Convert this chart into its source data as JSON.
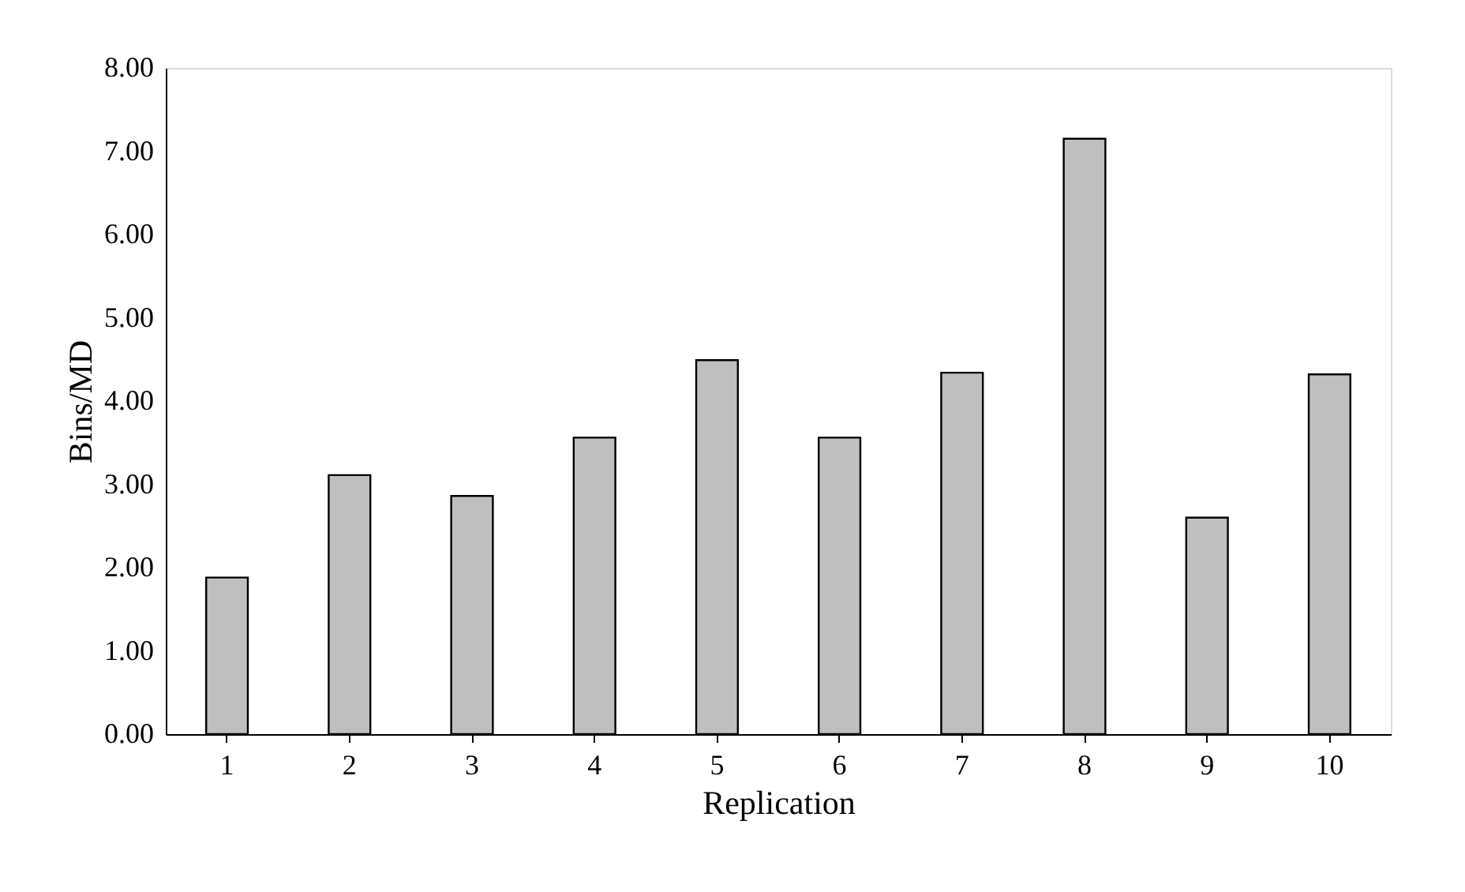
{
  "chart_data": {
    "type": "bar",
    "xlabel": "Replication",
    "ylabel": "Bins/MD",
    "categories": [
      "1",
      "2",
      "3",
      "4",
      "5",
      "6",
      "7",
      "8",
      "9",
      "10"
    ],
    "values": [
      1.88,
      3.11,
      2.86,
      3.56,
      4.49,
      3.56,
      4.34,
      7.15,
      2.6,
      4.32
    ],
    "color": "#bfbfbf",
    "ylim": [
      0,
      8
    ],
    "yticks": [
      {
        "value": 0,
        "label": "0.00"
      },
      {
        "value": 1,
        "label": "1.00"
      },
      {
        "value": 2,
        "label": "2.00"
      },
      {
        "value": 3,
        "label": "3.00"
      },
      {
        "value": 4,
        "label": "4.00"
      },
      {
        "value": 5,
        "label": "5.00"
      },
      {
        "value": 6,
        "label": "6.00"
      },
      {
        "value": 7,
        "label": "7.00"
      },
      {
        "value": 8,
        "label": "8.00"
      }
    ],
    "grid": false
  }
}
